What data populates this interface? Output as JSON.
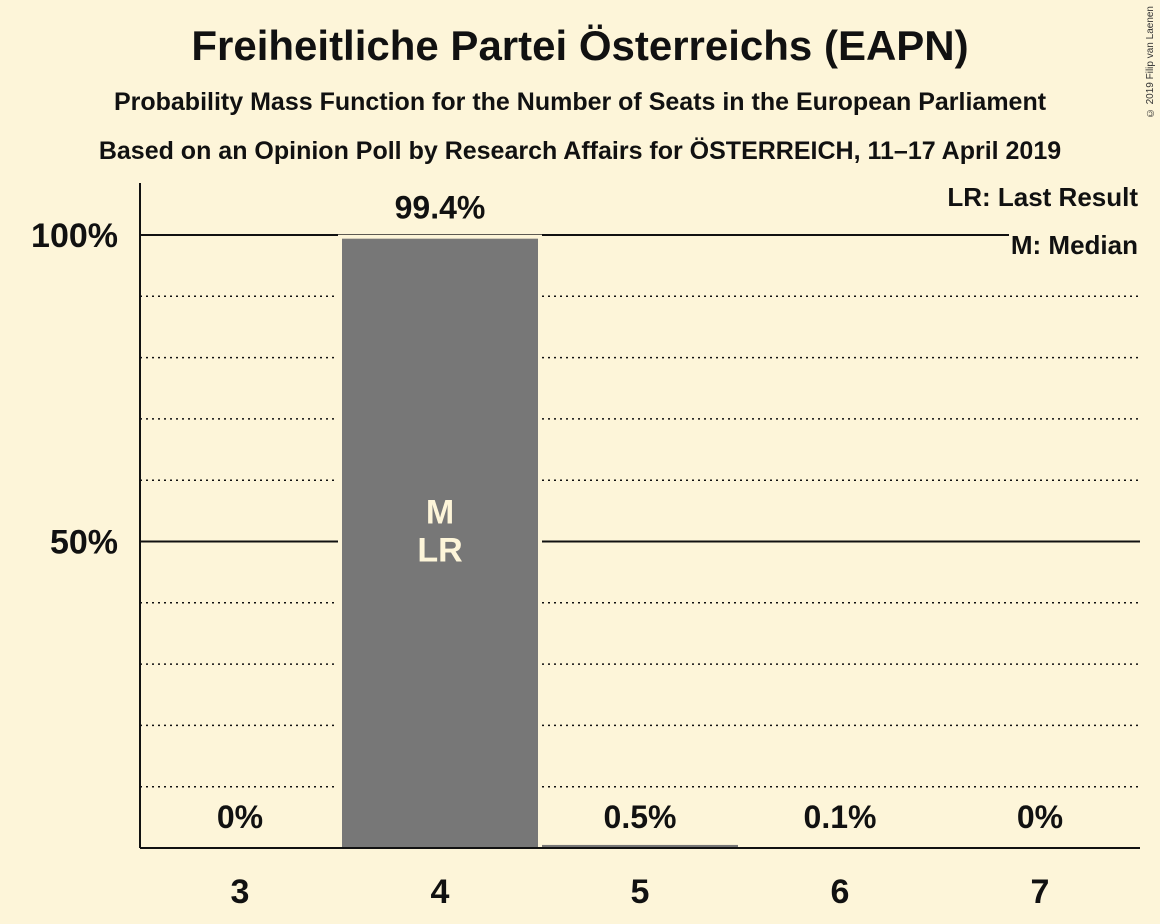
{
  "header": {
    "title": "Freiheitliche Partei Österreichs (EAPN)",
    "subtitle1": "Probability Mass Function for the Number of Seats in the European Parliament",
    "subtitle2": "Based on an Opinion Poll by Research Affairs for ÖSTERREICH, 11–17 April 2019",
    "copyright": "© 2019 Filip van Laenen"
  },
  "legend": {
    "last_result": "LR: Last Result",
    "median": "M: Median"
  },
  "colors": {
    "background": "#fdf5d9",
    "bar": "#777777",
    "bar_text": "#fdf5d9",
    "text": "#111111"
  },
  "chart_data": {
    "type": "bar",
    "categories": [
      "3",
      "4",
      "5",
      "6",
      "7"
    ],
    "values": [
      0,
      99.4,
      0.5,
      0.1,
      0
    ],
    "data_labels": [
      "0%",
      "99.4%",
      "0.5%",
      "0.1%",
      "0%"
    ],
    "bar_annotations": [
      "",
      "M\nLR",
      "",
      "",
      ""
    ],
    "ylim": [
      0,
      108
    ],
    "yticks": [
      50,
      100
    ],
    "ytick_labels": [
      "50%",
      "100%"
    ],
    "minor_gridlines": [
      10,
      20,
      30,
      40,
      60,
      70,
      80,
      90
    ],
    "grid": true,
    "legend_position": "top-right"
  }
}
